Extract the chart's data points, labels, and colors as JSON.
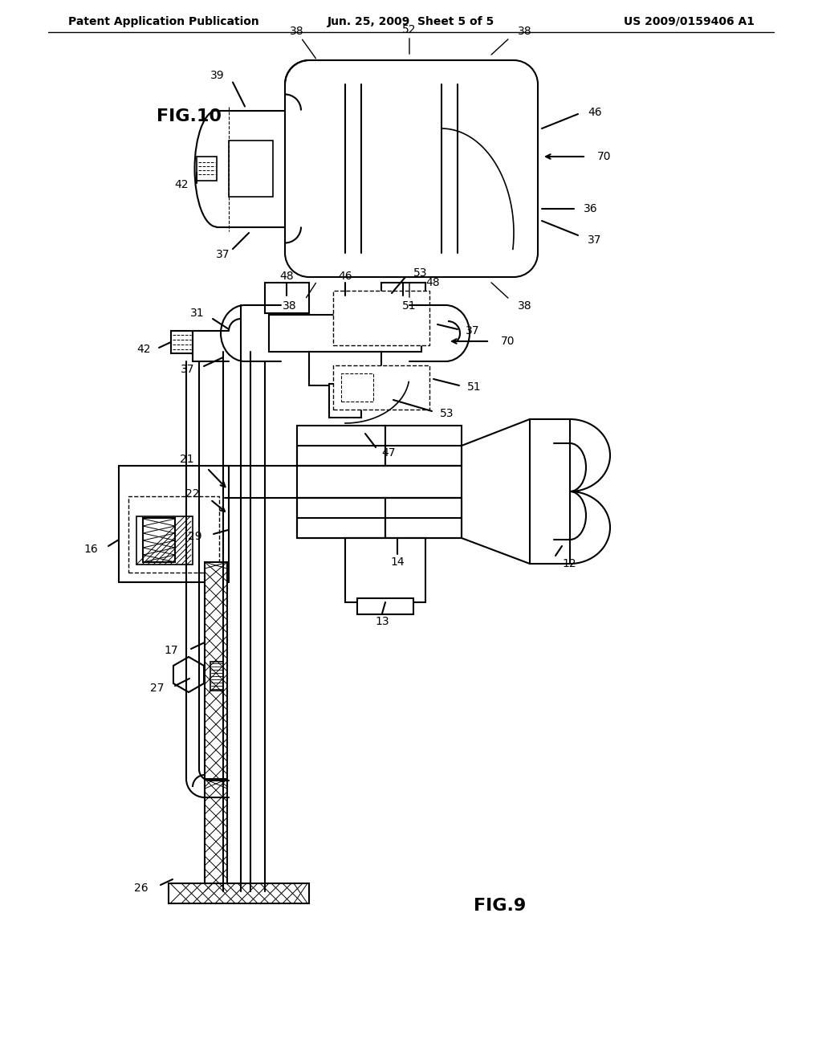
{
  "bg_color": "#ffffff",
  "line_color": "#000000",
  "title_left": "Patent Application Publication",
  "title_center": "Jun. 25, 2009  Sheet 5 of 5",
  "title_right": "US 2009/0159406 A1",
  "header_fontsize": 10,
  "label_fontsize": 10
}
